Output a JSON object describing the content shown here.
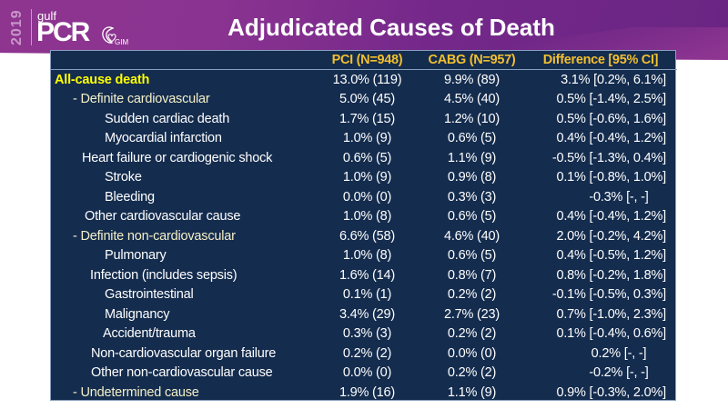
{
  "logo": {
    "year": "2019",
    "name_small": "gulf",
    "name_large": "PCR",
    "partner_mark": "GIM",
    "partner_icon": "heart-logo-icon"
  },
  "title": "Adjudicated Causes of Death",
  "colors": {
    "banner": "#8a3391",
    "table_bg": "#142c4e",
    "header_text": "#f2bf30",
    "highlight_text": "#ffff00",
    "subgroup_text": "#f4f0c8",
    "body_text": "#ffffff"
  },
  "table": {
    "columns": [
      "",
      "PCI (N=948)",
      "CABG (N=957)",
      "Difference [95% CI]"
    ],
    "rows": [
      {
        "label": "All-cause death",
        "pci": "13.0% (119)",
        "cabg": "9.9% (89)",
        "diff": "3.1% [0.2%, 6.1%]"
      },
      {
        "label": "- Definite cardiovascular",
        "pci": "5.0% (45)",
        "cabg": "4.5% (40)",
        "diff": "0.5% [-1.4%, 2.5%]"
      },
      {
        "label": "Sudden cardiac death",
        "pci": "1.7% (15)",
        "cabg": "1.2% (10)",
        "diff": "0.5% [-0.6%, 1.6%]"
      },
      {
        "label": "Myocardial infarction",
        "pci": "1.0% (9)",
        "cabg": "0.6% (5)",
        "diff": "0.4% [-0.4%, 1.2%]"
      },
      {
        "label": "Heart failure or cardiogenic shock",
        "pci": "0.6% (5)",
        "cabg": "1.1% (9)",
        "diff": "-0.5% [-1.3%, 0.4%]"
      },
      {
        "label": "Stroke",
        "pci": "1.0% (9)",
        "cabg": "0.9% (8)",
        "diff": "0.1% [-0.8%, 1.0%]"
      },
      {
        "label": "Bleeding",
        "pci": "0.0% (0)",
        "cabg": "0.3% (3)",
        "diff": "-0.3% [-, -]"
      },
      {
        "label": "Other cardiovascular cause",
        "pci": "1.0% (8)",
        "cabg": "0.6% (5)",
        "diff": "0.4% [-0.4%, 1.2%]"
      },
      {
        "label": "- Definite non-cardiovascular",
        "pci": "6.6% (58)",
        "cabg": "4.6% (40)",
        "diff": "2.0% [-0.2%, 4.2%]"
      },
      {
        "label": "Pulmonary",
        "pci": "1.0% (8)",
        "cabg": "0.6% (5)",
        "diff": "0.4% [-0.5%, 1.2%]"
      },
      {
        "label": "Infection (includes sepsis)",
        "pci": "1.6% (14)",
        "cabg": "0.8% (7)",
        "diff": "0.8% [-0.2%, 1.8%]"
      },
      {
        "label": "Gastrointestinal",
        "pci": "0.1% (1)",
        "cabg": "0.2% (2)",
        "diff": "-0.1% [-0.5%, 0.3%]"
      },
      {
        "label": "Malignancy",
        "pci": "3.4% (29)",
        "cabg": "2.7% (23)",
        "diff": "0.7% [-1.0%, 2.3%]"
      },
      {
        "label": "Accident/trauma",
        "pci": "0.3% (3)",
        "cabg": "0.2% (2)",
        "diff": "0.1% [-0.4%, 0.6%]"
      },
      {
        "label": "Non-cardiovascular organ failure",
        "pci": "0.2% (2)",
        "cabg": "0.0% (0)",
        "diff": "0.2% [-, -]"
      },
      {
        "label": "Other non-cardiovascular cause",
        "pci": "0.0% (0)",
        "cabg": "0.2% (2)",
        "diff": "-0.2% [-, -]"
      },
      {
        "label": "- Undetermined cause",
        "pci": "1.9% (16)",
        "cabg": "1.1% (9)",
        "diff": "0.9% [-0.3%, 2.0%]"
      }
    ]
  }
}
